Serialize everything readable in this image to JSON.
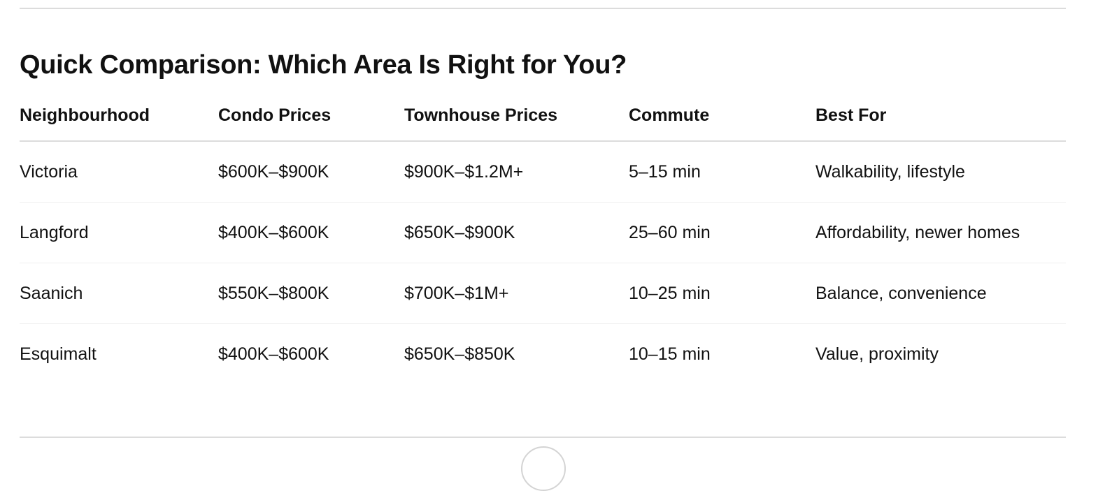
{
  "heading": "Quick Comparison: Which Area Is Right for You?",
  "table": {
    "headers": [
      "Neighbourhood",
      "Condo Prices",
      "Townhouse Prices",
      "Commute",
      "Best For"
    ],
    "rows": [
      [
        "Victoria",
        "$600K–$900K",
        "$900K–$1.2M+",
        "5–15 min",
        "Walkability, lifestyle"
      ],
      [
        "Langford",
        "$400K–$600K",
        "$650K–$900K",
        "25–60 min",
        "Affordability, newer homes"
      ],
      [
        "Saanich",
        "$550K–$800K",
        "$700K–$1M+",
        "10–25 min",
        "Balance, convenience"
      ],
      [
        "Esquimalt",
        "$400K–$600K",
        "$650K–$850K",
        "10–15 min",
        "Value, proximity"
      ]
    ]
  }
}
